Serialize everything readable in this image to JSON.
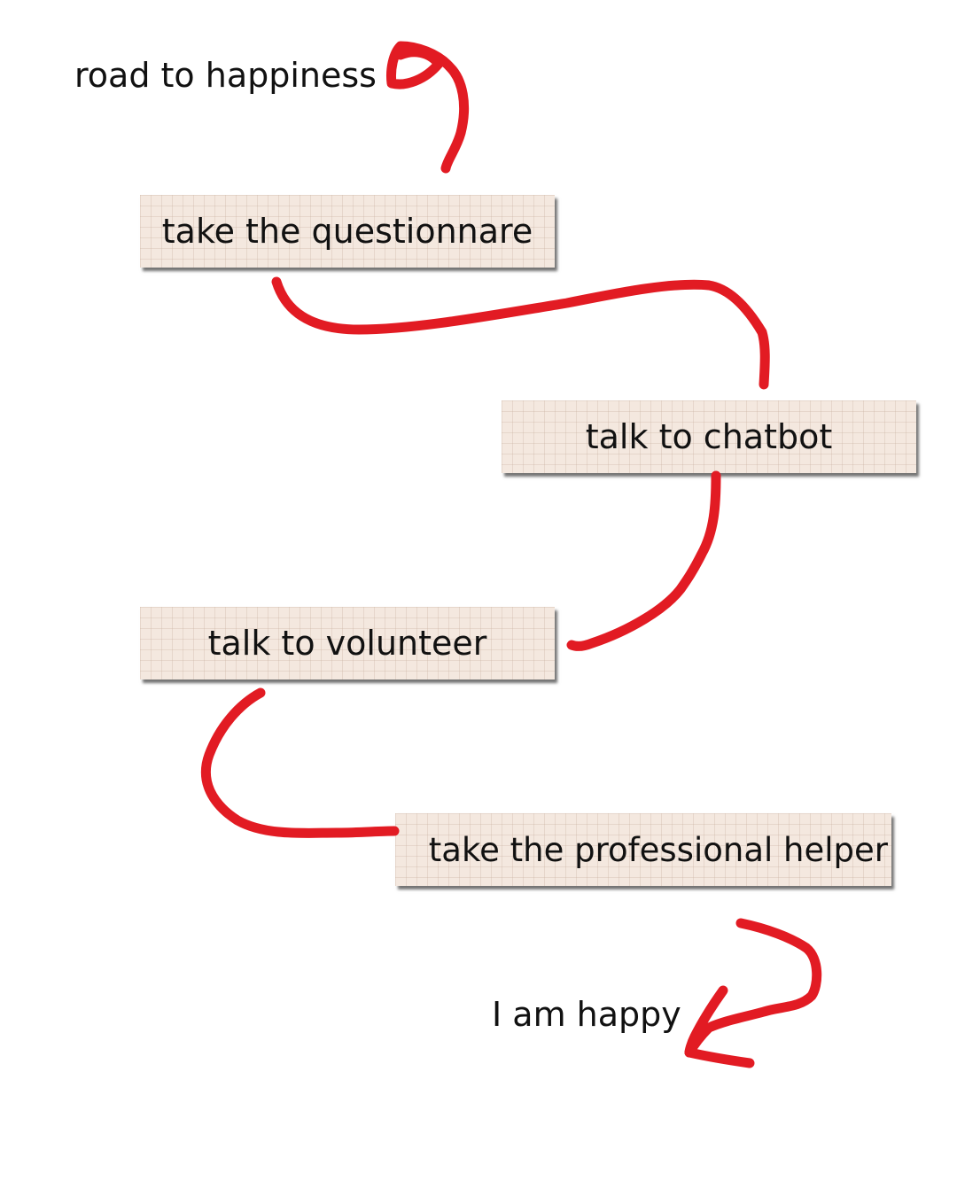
{
  "title": "road to happiness",
  "steps": [
    "take the questionnare",
    "talk to chatbot",
    "talk to volunteer",
    "take the professional helper"
  ],
  "end": "I am happy",
  "colors": {
    "arrow": "#e21b23",
    "box_fill": "#f4e8df",
    "text": "#111111",
    "background": "#ffffff"
  }
}
